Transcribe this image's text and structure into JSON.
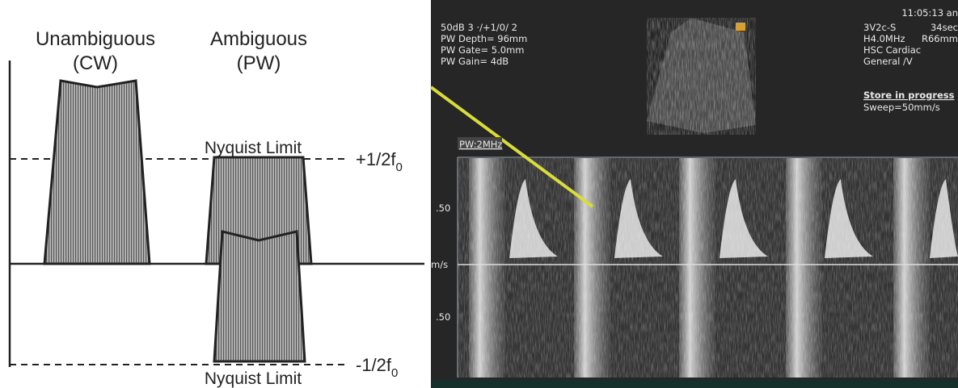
{
  "diagram": {
    "cw_title": "Unambiguous",
    "cw_sub": "(CW)",
    "pw_title": "Ambiguous",
    "pw_sub": "(PW)",
    "nyquist_top": "Nyquist Limit",
    "nyquist_bottom": "Nyquist Limit",
    "pos_limit": {
      "text": "+1/2f",
      "sub": "0"
    },
    "neg_limit": {
      "text": "-1/2f",
      "sub": "0"
    }
  },
  "ultrasound": {
    "left_info": [
      "50dB  3 ·/+1/0/ 2",
      "PW Depth=  96mm",
      "PW Gate=  5.0mm",
      "PW Gain=   4dB"
    ],
    "time": "11:05:13 an",
    "right_info": [
      [
        "3V2c-S",
        "34sec"
      ],
      [
        "H4.0MHz",
        "R66mm"
      ],
      [
        "HSC Cardiac",
        ""
      ],
      [
        "General /V",
        ""
      ]
    ],
    "status": [
      "Store in progress",
      "Sweep=50mm/s"
    ],
    "mode": "PW:2MHz",
    "scale": {
      "top": ".50",
      "unit": "m/s",
      "bottom": ".50"
    }
  }
}
